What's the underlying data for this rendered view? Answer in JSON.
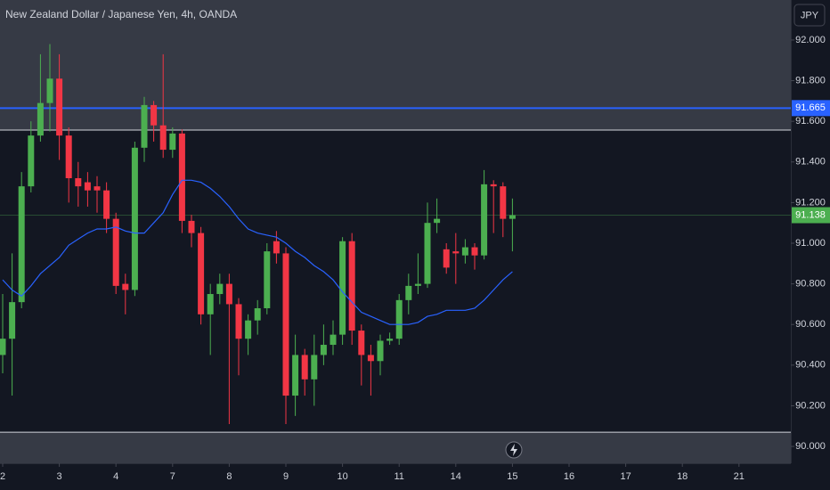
{
  "chart_data": {
    "type": "candlestick",
    "title": "New Zealand Dollar / Japanese Yen, 4h, OANDA",
    "currency": "JPY",
    "up_color": "#4caf50",
    "down_color": "#f23645",
    "ma_color": "#2962ff",
    "ylim": [
      89.917,
      92.197
    ],
    "yticks": [
      {
        "value": 90.0,
        "label": "90.000"
      },
      {
        "value": 90.2,
        "label": "90.200"
      },
      {
        "value": 90.4,
        "label": "90.400"
      },
      {
        "value": 90.6,
        "label": "90.600"
      },
      {
        "value": 90.8,
        "label": "90.800"
      },
      {
        "value": 91.0,
        "label": "91.000"
      },
      {
        "value": 91.2,
        "label": "91.200"
      },
      {
        "value": 91.4,
        "label": "91.400"
      },
      {
        "value": 91.6,
        "label": "91.600"
      },
      {
        "value": 91.8,
        "label": "91.800"
      },
      {
        "value": 92.0,
        "label": "92.000"
      }
    ],
    "xticks": [
      {
        "value": 0,
        "label": "2"
      },
      {
        "value": 6,
        "label": "3"
      },
      {
        "value": 12,
        "label": "4"
      },
      {
        "value": 18,
        "label": "7"
      },
      {
        "value": 24,
        "label": "8"
      },
      {
        "value": 30,
        "label": "9"
      },
      {
        "value": 36,
        "label": "10"
      },
      {
        "value": 42,
        "label": "11"
      },
      {
        "value": 48,
        "label": "14"
      },
      {
        "value": 54,
        "label": "15"
      },
      {
        "value": 60,
        "label": "16"
      },
      {
        "value": 66,
        "label": "17"
      },
      {
        "value": 72,
        "label": "18"
      },
      {
        "value": 78,
        "label": "21"
      }
    ],
    "open": [
      90.45,
      90.53,
      90.71,
      91.28,
      91.53,
      91.69,
      91.81,
      91.53,
      91.32,
      91.3,
      91.28,
      91.26,
      91.12,
      90.8,
      90.77,
      91.47,
      91.68,
      91.58,
      91.46,
      91.54,
      91.11,
      91.05,
      90.65,
      90.75,
      90.8,
      90.7,
      90.53,
      90.62,
      90.68,
      91.01,
      90.95,
      90.25,
      90.45,
      90.33,
      90.45,
      90.5,
      90.55,
      91.01,
      90.57,
      90.45,
      90.42,
      90.52,
      90.53,
      90.72,
      90.79,
      90.8,
      91.1,
      90.97,
      90.96,
      90.94,
      90.98,
      90.94,
      91.29,
      91.28,
      91.12
    ],
    "high": [
      90.75,
      90.95,
      91.35,
      91.6,
      91.93,
      91.98,
      91.93,
      91.57,
      91.4,
      91.35,
      91.33,
      91.3,
      91.15,
      90.85,
      91.5,
      91.72,
      91.7,
      91.93,
      91.57,
      91.56,
      91.14,
      91.08,
      90.8,
      90.85,
      90.85,
      90.73,
      90.65,
      90.72,
      91.0,
      91.06,
      90.98,
      90.55,
      90.48,
      90.55,
      90.6,
      90.62,
      91.03,
      91.05,
      90.6,
      90.5,
      90.55,
      90.56,
      90.75,
      90.85,
      90.95,
      91.2,
      91.22,
      91.0,
      91.05,
      91.02,
      91.0,
      91.36,
      91.31,
      91.3,
      91.22
    ],
    "low": [
      90.36,
      90.25,
      90.68,
      91.25,
      91.5,
      91.55,
      91.41,
      91.2,
      91.18,
      91.18,
      91.15,
      91.05,
      90.75,
      90.65,
      90.74,
      91.4,
      91.5,
      91.42,
      91.42,
      91.05,
      90.98,
      90.6,
      90.45,
      90.7,
      90.11,
      90.35,
      90.45,
      90.55,
      90.65,
      90.9,
      90.11,
      90.15,
      90.25,
      90.2,
      90.4,
      90.45,
      90.5,
      90.5,
      90.3,
      90.25,
      90.35,
      90.5,
      90.5,
      90.65,
      90.75,
      90.78,
      91.05,
      90.85,
      90.8,
      90.9,
      90.87,
      90.92,
      91.05,
      91.03,
      90.96
    ],
    "close": [
      90.53,
      90.71,
      91.28,
      91.53,
      91.69,
      91.81,
      91.53,
      91.32,
      91.28,
      91.26,
      91.26,
      91.12,
      90.79,
      90.77,
      91.47,
      91.68,
      91.58,
      91.46,
      91.54,
      91.11,
      91.05,
      90.65,
      90.75,
      90.8,
      90.7,
      90.53,
      90.62,
      90.68,
      90.96,
      90.95,
      90.25,
      90.45,
      90.33,
      90.45,
      90.5,
      90.55,
      91.01,
      90.57,
      90.45,
      90.42,
      90.52,
      90.53,
      90.72,
      90.79,
      90.8,
      91.1,
      91.12,
      90.88,
      90.95,
      90.98,
      90.94,
      91.29,
      91.28,
      91.12,
      91.138
    ],
    "moving_average": [
      90.82,
      90.77,
      90.74,
      90.79,
      90.85,
      90.89,
      90.93,
      90.99,
      91.02,
      91.05,
      91.07,
      91.07,
      91.08,
      91.06,
      91.05,
      91.05,
      91.1,
      91.15,
      91.24,
      91.31,
      91.31,
      91.3,
      91.27,
      91.23,
      91.18,
      91.12,
      91.07,
      91.05,
      91.04,
      91.03,
      91.0,
      90.96,
      90.93,
      90.89,
      90.86,
      90.82,
      90.76,
      90.71,
      90.66,
      90.64,
      90.62,
      90.6,
      90.6,
      90.6,
      90.61,
      90.64,
      90.65,
      90.67,
      90.67,
      90.67,
      90.68,
      90.72,
      90.77,
      90.82,
      90.86
    ],
    "zone": [
      90.07,
      91.557
    ],
    "price_lines": [
      {
        "value": 91.665,
        "label": "91.665",
        "color": "#2962ff"
      },
      {
        "value": 91.138,
        "label": "91.138",
        "color": "#4caf50"
      }
    ]
  }
}
